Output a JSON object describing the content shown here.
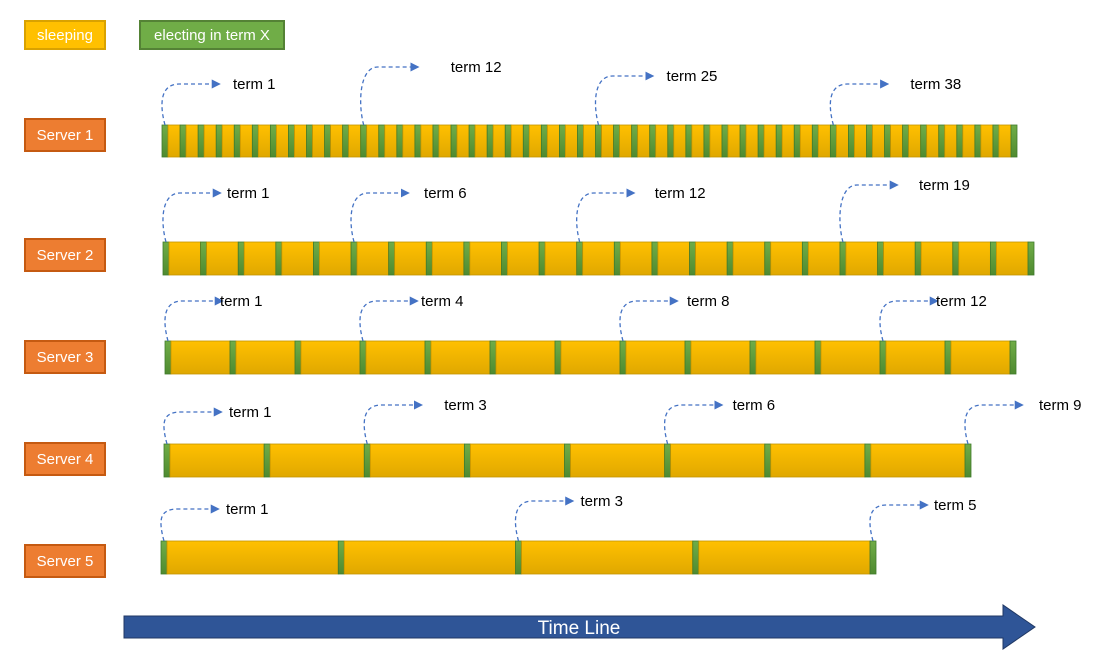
{
  "legend": {
    "sleeping": "sleeping",
    "electing": "electing in term X"
  },
  "colors": {
    "sleeping_fill": "#ffc000",
    "sleeping_border": "#c49400",
    "electing_fill": "#70ad47",
    "electing_border": "#3f7a2c",
    "server_fill": "#ed7d31",
    "arrow": "#4472c4",
    "timeline": "#2f5597"
  },
  "servers": [
    {
      "label": "Server 1",
      "segments": 47,
      "terms": [
        "term 1",
        "term 12",
        "term 25",
        "term 38"
      ],
      "term_segment_index": [
        0,
        11,
        24,
        37
      ]
    },
    {
      "label": "Server 2",
      "segments": 23,
      "terms": [
        "term 1",
        "term 6",
        "term 12",
        "term 19"
      ],
      "term_segment_index": [
        0,
        5,
        11,
        18
      ]
    },
    {
      "label": "Server 3",
      "segments": 13,
      "terms": [
        "term 1",
        "term 4",
        "term 8",
        "term 12"
      ],
      "term_segment_index": [
        0,
        3,
        7,
        11
      ]
    },
    {
      "label": "Server 4",
      "segments": 8,
      "terms": [
        "term 1",
        "term 3",
        "term 6",
        "term 9"
      ],
      "term_segment_index": [
        0,
        2,
        5,
        8
      ]
    },
    {
      "label": "Server 5",
      "segments": 4,
      "terms": [
        "term 1",
        "term 3",
        "term 5"
      ],
      "term_segment_index": [
        0,
        2,
        4
      ]
    }
  ],
  "timeline": {
    "label": "Time Line"
  }
}
